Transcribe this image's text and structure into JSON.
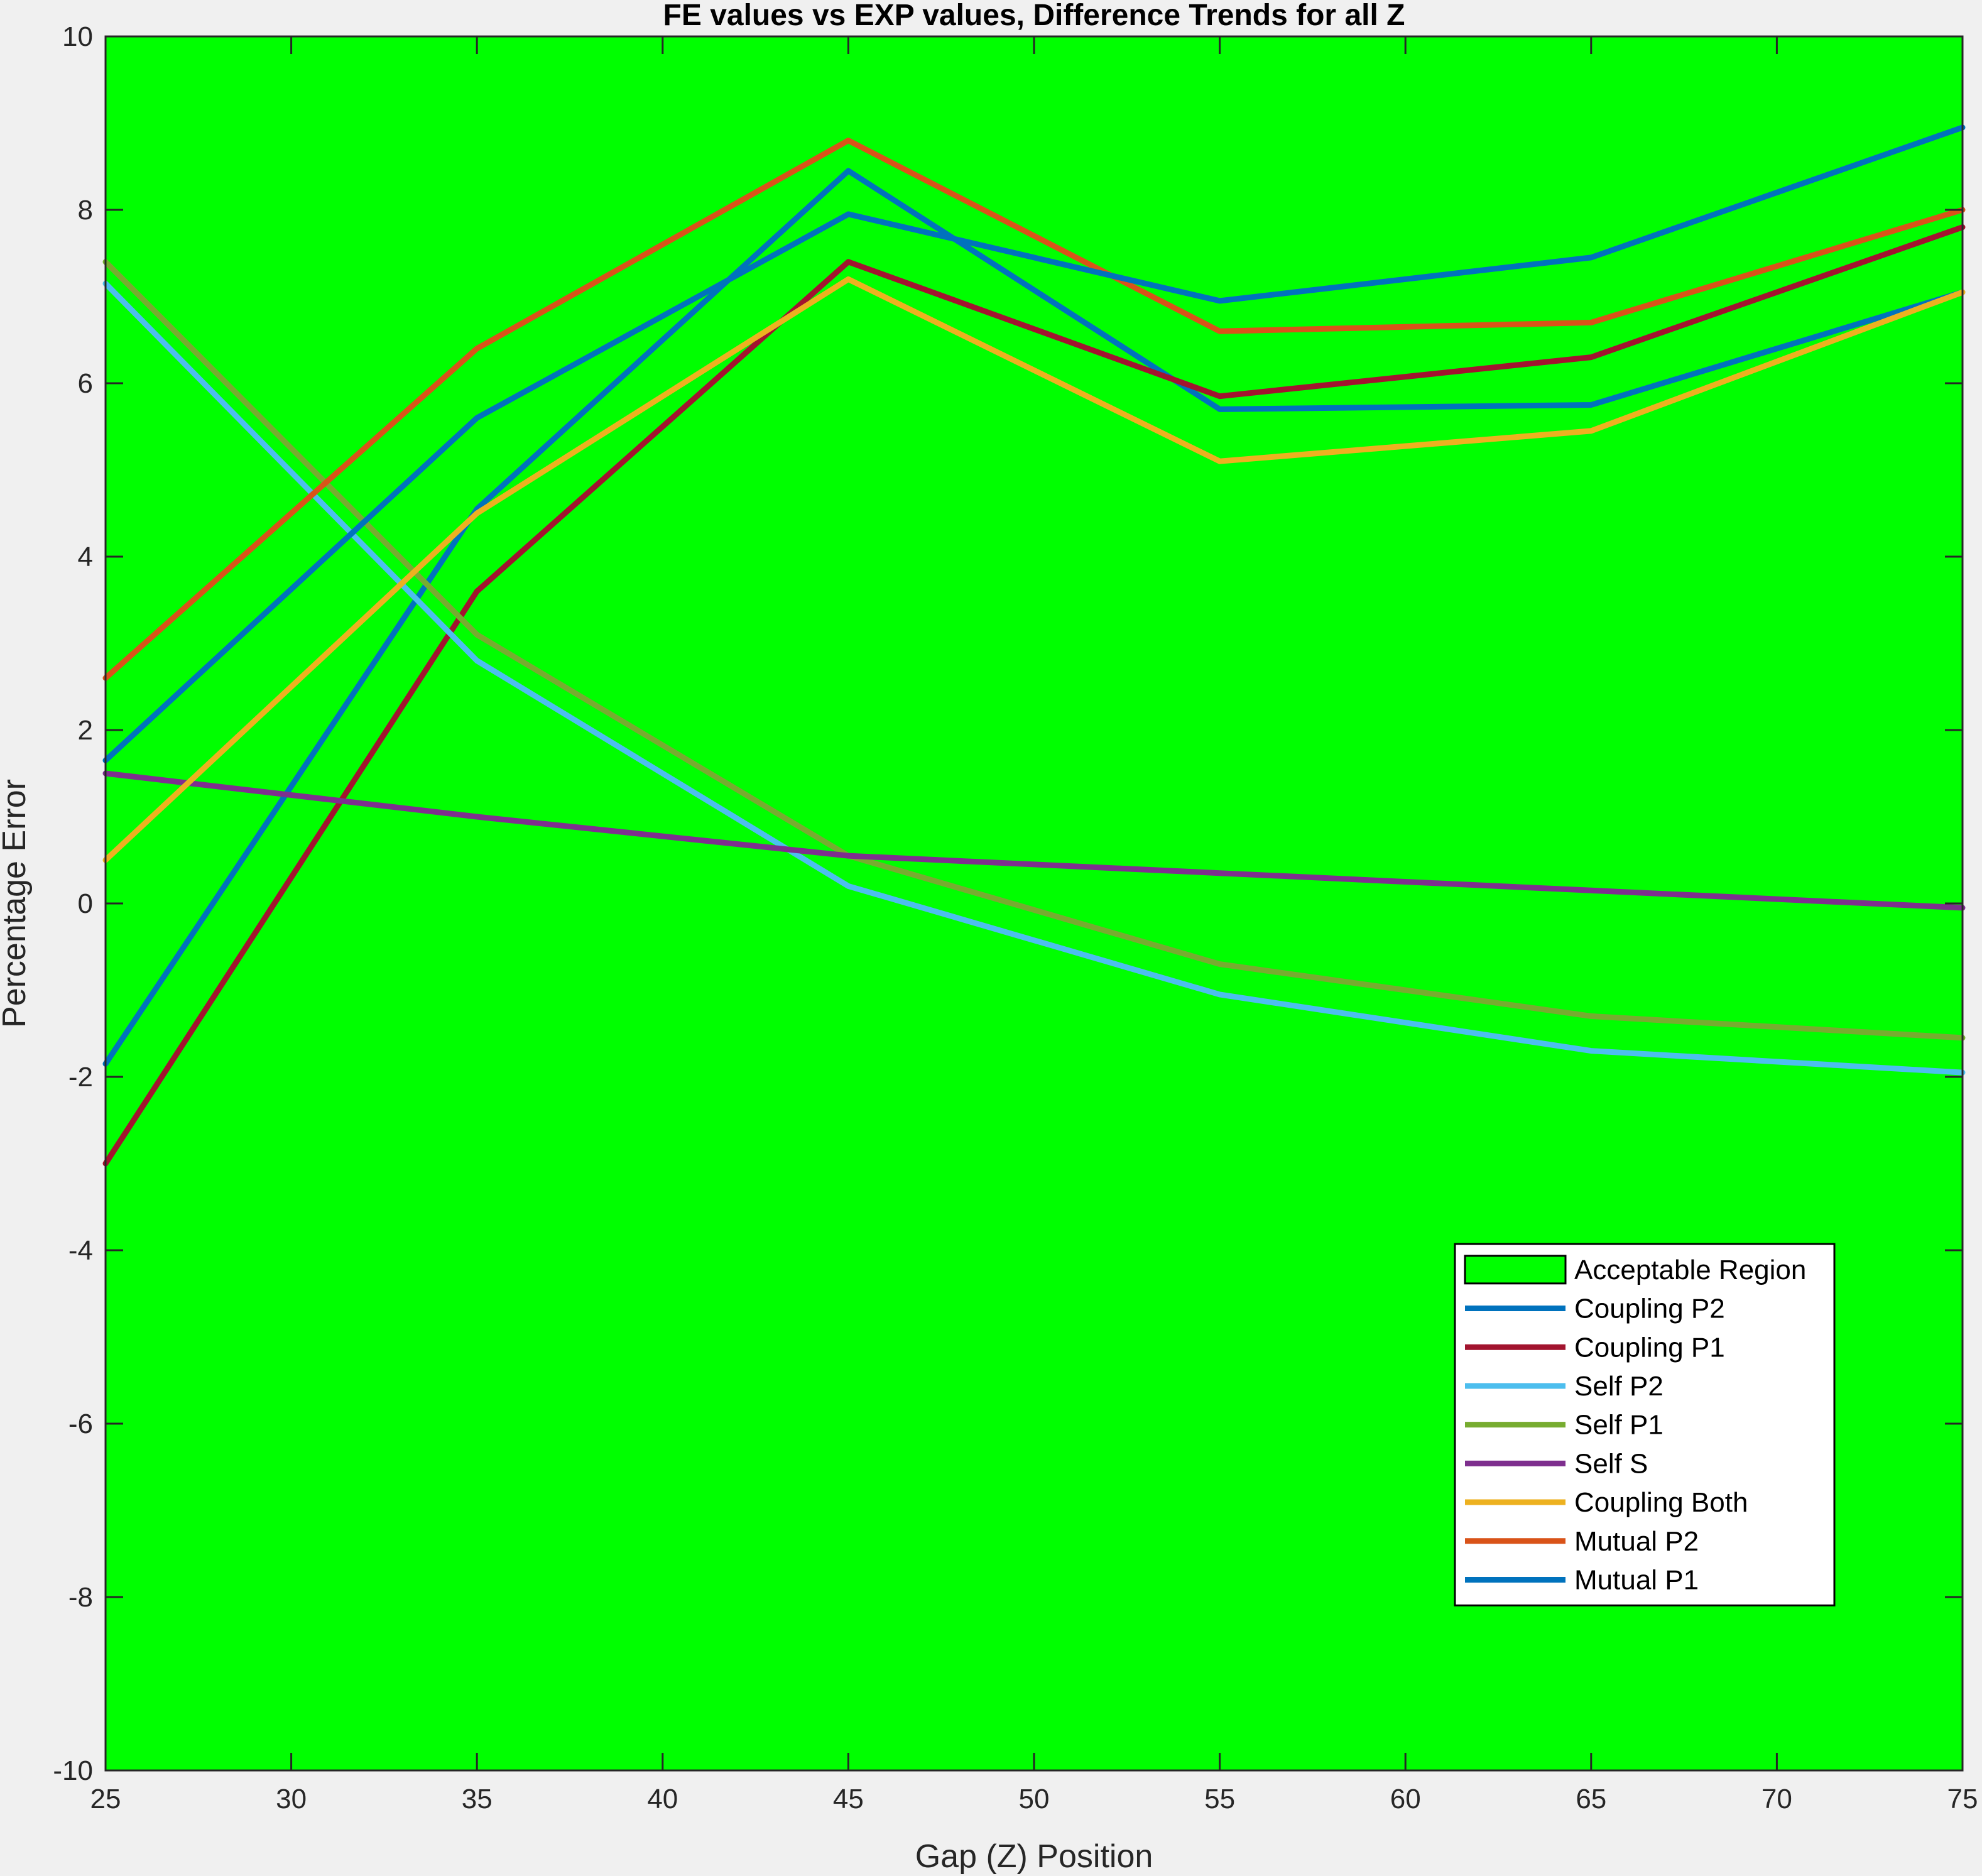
{
  "chart_data": {
    "type": "line",
    "title": "FE values vs EXP values, Difference Trends for all Z",
    "xlabel": "Gap (Z) Position",
    "ylabel": "Percentage Error",
    "xlim": [
      25,
      75
    ],
    "ylim": [
      -10,
      10
    ],
    "xticks": [
      25,
      30,
      35,
      40,
      45,
      50,
      55,
      60,
      65,
      70,
      75
    ],
    "yticks": [
      -10,
      -8,
      -6,
      -4,
      -2,
      0,
      2,
      4,
      6,
      8,
      10
    ],
    "x": [
      25,
      35,
      45,
      55,
      65,
      75
    ],
    "region": {
      "name": "Acceptable Region",
      "range": [
        -10,
        10
      ],
      "color": "#00ff00"
    },
    "legend_position": "lower-right",
    "series": [
      {
        "name": "Coupling P2",
        "color": "#0072bd",
        "values": [
          -1.85,
          4.55,
          8.45,
          5.7,
          5.75,
          7.05
        ]
      },
      {
        "name": "Coupling P1",
        "color": "#a2142f",
        "values": [
          -3.0,
          3.6,
          7.4,
          5.85,
          6.3,
          7.8
        ]
      },
      {
        "name": "Self P2",
        "color": "#4dbeee",
        "values": [
          7.15,
          2.8,
          0.2,
          -1.05,
          -1.7,
          -1.95
        ]
      },
      {
        "name": "Self P1",
        "color": "#77ac30",
        "values": [
          7.4,
          3.1,
          0.55,
          -0.7,
          -1.3,
          -1.55
        ]
      },
      {
        "name": "Self S",
        "color": "#7e2f8e",
        "values": [
          1.5,
          1.0,
          0.55,
          0.35,
          0.15,
          -0.05
        ]
      },
      {
        "name": "Coupling Both",
        "color": "#edb120",
        "values": [
          0.5,
          4.5,
          7.2,
          5.1,
          5.45,
          7.05
        ]
      },
      {
        "name": "Mutual P2",
        "color": "#d95319",
        "values": [
          2.6,
          6.4,
          8.8,
          6.6,
          6.7,
          8.0
        ]
      },
      {
        "name": "Mutual P1",
        "color": "#0072bd",
        "values": [
          1.65,
          5.6,
          7.95,
          6.95,
          7.45,
          8.95
        ]
      }
    ]
  }
}
